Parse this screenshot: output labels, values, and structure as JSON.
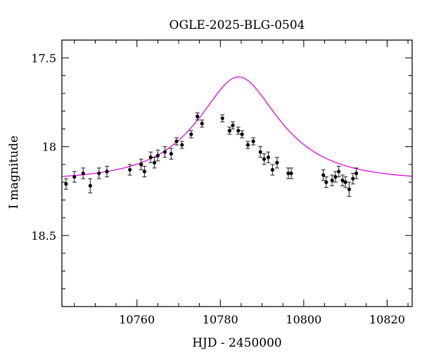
{
  "chart_data": {
    "type": "scatter",
    "title": "OGLE-2025-BLG-0504",
    "xlabel": "HJD - 2450000",
    "ylabel": "I magnitude",
    "xlim": [
      10742,
      10826
    ],
    "ylim": [
      18.9,
      17.4
    ],
    "y_inverted": true,
    "xticks": [
      10760,
      10780,
      10800,
      10820
    ],
    "yticks": [
      17.5,
      18,
      18.5
    ],
    "ytick_labels": [
      "17.5",
      "18",
      "18.5"
    ],
    "grid": false,
    "legend": "none",
    "colors": {
      "points": "#000000",
      "model": "#e000e0"
    },
    "series": [
      {
        "kind": "points_with_errorbars",
        "points": [
          [
            10743.0,
            18.21,
            0.03
          ],
          [
            10745.0,
            18.17,
            0.03
          ],
          [
            10747.1,
            18.15,
            0.03
          ],
          [
            10748.8,
            18.22,
            0.04
          ],
          [
            10750.9,
            18.15,
            0.03
          ],
          [
            10752.8,
            18.14,
            0.03
          ],
          [
            10758.3,
            18.13,
            0.03
          ],
          [
            10761.0,
            18.1,
            0.03
          ],
          [
            10761.8,
            18.14,
            0.03
          ],
          [
            10763.3,
            18.06,
            0.03
          ],
          [
            10764.2,
            18.09,
            0.03
          ],
          [
            10765.0,
            18.05,
            0.03
          ],
          [
            10766.7,
            18.03,
            0.03
          ],
          [
            10768.2,
            18.04,
            0.03
          ],
          [
            10769.5,
            17.97,
            0.02
          ],
          [
            10770.8,
            17.99,
            0.02
          ],
          [
            10773.0,
            17.93,
            0.02
          ],
          [
            10774.5,
            17.83,
            0.02
          ],
          [
            10775.6,
            17.87,
            0.02
          ],
          [
            10780.5,
            17.84,
            0.02
          ],
          [
            10782.2,
            17.91,
            0.02
          ],
          [
            10783.0,
            17.88,
            0.02
          ],
          [
            10784.3,
            17.91,
            0.02
          ],
          [
            10785.2,
            17.93,
            0.02
          ],
          [
            10786.6,
            17.99,
            0.02
          ],
          [
            10787.9,
            17.97,
            0.02
          ],
          [
            10789.6,
            18.03,
            0.03
          ],
          [
            10790.5,
            18.07,
            0.03
          ],
          [
            10791.5,
            18.06,
            0.03
          ],
          [
            10792.5,
            18.13,
            0.03
          ],
          [
            10793.6,
            18.09,
            0.03
          ],
          [
            10796.3,
            18.15,
            0.03
          ],
          [
            10797.0,
            18.15,
            0.03
          ],
          [
            10804.7,
            18.16,
            0.03
          ],
          [
            10805.4,
            18.2,
            0.03
          ],
          [
            10806.8,
            18.19,
            0.03
          ],
          [
            10807.6,
            18.17,
            0.03
          ],
          [
            10808.4,
            18.14,
            0.03
          ],
          [
            10809.3,
            18.19,
            0.03
          ],
          [
            10810.0,
            18.2,
            0.03
          ],
          [
            10810.9,
            18.24,
            0.04
          ],
          [
            10811.8,
            18.18,
            0.03
          ],
          [
            10812.6,
            18.15,
            0.03
          ]
        ]
      },
      {
        "kind": "model_curve",
        "model": "magnification",
        "params": {
          "t0": 10784.4,
          "u0": 0.5,
          "tE": 18,
          "baseline": 18.19,
          "f_source": 0.6
        }
      }
    ]
  }
}
